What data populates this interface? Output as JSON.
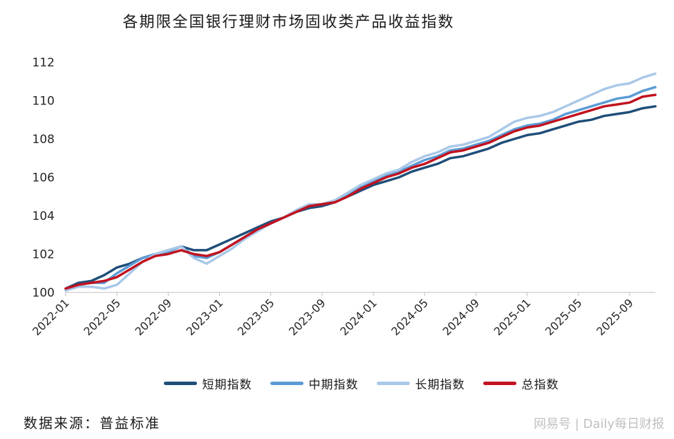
{
  "title": "各期限全国银行理财市场固收类产品收益指数",
  "source": "数据来源：普益标准",
  "watermark": "网易号 | Daily每日财报",
  "chart_data": {
    "type": "line",
    "title": "各期限全国银行理财市场固收类产品收益指数",
    "ylim": [
      100,
      112
    ],
    "yticks": [
      100,
      102,
      104,
      106,
      108,
      110,
      112
    ],
    "xticks": [
      "2022-01",
      "2022-05",
      "2022-09",
      "2023-01",
      "2023-05",
      "2023-09",
      "2024-01",
      "2024-05",
      "2024-09",
      "2025-01",
      "2025-05",
      "2025-09"
    ],
    "grid": false,
    "legend_position": "bottom",
    "x": [
      "2022-01",
      "2022-02",
      "2022-03",
      "2022-04",
      "2022-05",
      "2022-06",
      "2022-07",
      "2022-08",
      "2022-09",
      "2022-10",
      "2022-11",
      "2022-12",
      "2023-01",
      "2023-02",
      "2023-03",
      "2023-04",
      "2023-05",
      "2023-06",
      "2023-07",
      "2023-08",
      "2023-09",
      "2023-10",
      "2023-11",
      "2023-12",
      "2024-01",
      "2024-02",
      "2024-03",
      "2024-04",
      "2024-05",
      "2024-06",
      "2024-07",
      "2024-08",
      "2024-09",
      "2024-10",
      "2024-11",
      "2024-12",
      "2025-01",
      "2025-02",
      "2025-03",
      "2025-04",
      "2025-05",
      "2025-06",
      "2025-07",
      "2025-08",
      "2025-09",
      "2025-10",
      "2025-11"
    ],
    "series": [
      {
        "name": "短期指数",
        "color": "#1f4e79",
        "values": [
          100.2,
          100.5,
          100.6,
          100.9,
          101.3,
          101.5,
          101.8,
          102.0,
          102.2,
          102.4,
          102.2,
          102.2,
          102.5,
          102.8,
          103.1,
          103.4,
          103.7,
          103.9,
          104.2,
          104.4,
          104.5,
          104.7,
          105.0,
          105.3,
          105.6,
          105.8,
          106.0,
          106.3,
          106.5,
          106.7,
          107.0,
          107.1,
          107.3,
          107.5,
          107.8,
          108.0,
          108.2,
          108.3,
          108.5,
          108.7,
          108.9,
          109.0,
          109.2,
          109.3,
          109.4,
          109.6,
          109.7
        ]
      },
      {
        "name": "中期指数",
        "color": "#5b9bd5",
        "values": [
          100.1,
          100.4,
          100.5,
          100.5,
          101.0,
          101.4,
          101.8,
          102.0,
          102.1,
          102.4,
          101.9,
          101.8,
          102.1,
          102.5,
          102.9,
          103.3,
          103.6,
          103.9,
          104.2,
          104.5,
          104.6,
          104.8,
          105.1,
          105.5,
          105.8,
          106.1,
          106.3,
          106.6,
          106.9,
          107.1,
          107.4,
          107.5,
          107.7,
          107.9,
          108.2,
          108.5,
          108.7,
          108.8,
          109.0,
          109.3,
          109.5,
          109.7,
          109.9,
          110.1,
          110.2,
          110.5,
          110.7
        ]
      },
      {
        "name": "长期指数",
        "color": "#a9c8e8",
        "values": [
          100.1,
          100.3,
          100.3,
          100.2,
          100.4,
          101.0,
          101.6,
          102.0,
          102.2,
          102.4,
          101.8,
          101.5,
          101.9,
          102.3,
          102.8,
          103.2,
          103.6,
          103.9,
          104.3,
          104.6,
          104.6,
          104.8,
          105.2,
          105.6,
          105.9,
          106.2,
          106.4,
          106.8,
          107.1,
          107.3,
          107.6,
          107.7,
          107.9,
          108.1,
          108.5,
          108.9,
          109.1,
          109.2,
          109.4,
          109.7,
          110.0,
          110.3,
          110.6,
          110.8,
          110.9,
          111.2,
          111.4
        ]
      },
      {
        "name": "总指数",
        "color": "#c1121f",
        "values": [
          100.2,
          100.4,
          100.5,
          100.6,
          100.8,
          101.2,
          101.6,
          101.9,
          102.0,
          102.2,
          102.0,
          101.9,
          102.1,
          102.5,
          102.9,
          103.3,
          103.6,
          103.9,
          104.2,
          104.5,
          104.6,
          104.7,
          105.0,
          105.4,
          105.7,
          106.0,
          106.2,
          106.5,
          106.7,
          107.0,
          107.3,
          107.4,
          107.6,
          107.8,
          108.1,
          108.4,
          108.6,
          108.7,
          108.9,
          109.1,
          109.3,
          109.5,
          109.7,
          109.8,
          109.9,
          110.2,
          110.3
        ]
      }
    ]
  }
}
